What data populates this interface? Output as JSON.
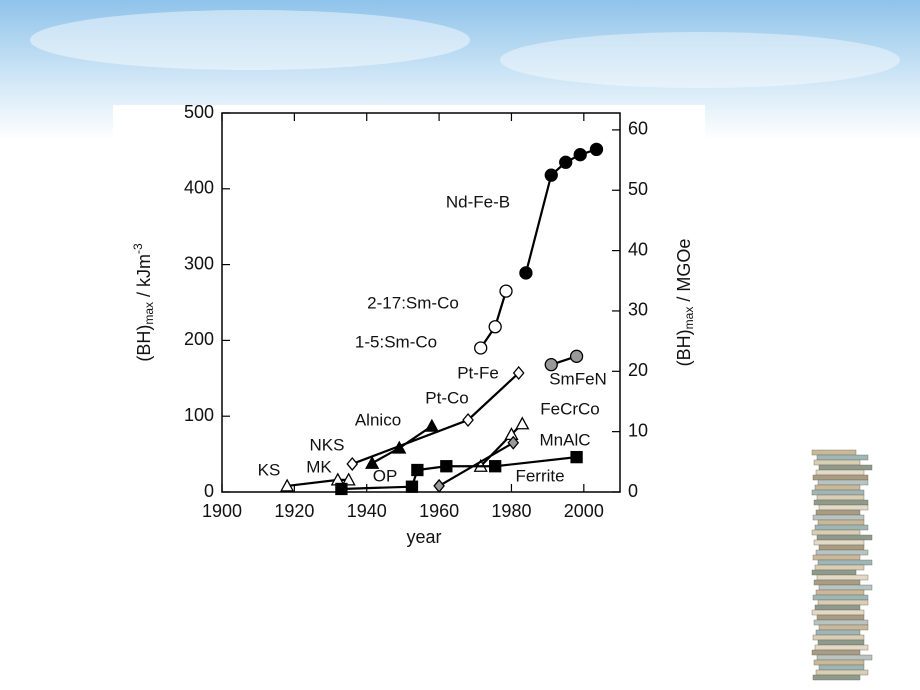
{
  "chart_data": {
    "type": "line",
    "xlabel": "year",
    "ylabel": [
      "(BH)",
      "max",
      " / kJm",
      "-3"
    ],
    "y2label": [
      "(BH)",
      "max",
      " / MGOe"
    ],
    "xlim": [
      1900,
      2010
    ],
    "xticks": [
      1900,
      1920,
      1940,
      1960,
      1980,
      2000
    ],
    "ylim": [
      0,
      500
    ],
    "yticks": [
      0,
      100,
      200,
      300,
      400,
      500
    ],
    "y2lim": [
      0,
      62.8
    ],
    "y2ticks": [
      0,
      10,
      20,
      30,
      40,
      50,
      60
    ],
    "series": [
      {
        "marker": "circle",
        "fill": "#000000",
        "color": "#000000",
        "x": [
          1984,
          1991,
          1995,
          1999,
          2003.5
        ],
        "values": [
          289,
          418,
          435,
          445,
          452
        ]
      },
      {
        "marker": "circle",
        "fill": "#ffffff",
        "color": "#000000",
        "x": [
          1971.5,
          1975.5,
          1978.5
        ],
        "values": [
          190,
          218,
          265
        ]
      },
      {
        "marker": "circle",
        "fill": "#999999",
        "color": "#000000",
        "x": [
          1991,
          1998
        ],
        "values": [
          168,
          179
        ]
      },
      {
        "marker": "diamond",
        "fill": "#ffffff",
        "color": "#000000",
        "x": [
          1936,
          1968,
          1982
        ],
        "values": [
          37,
          95,
          157
        ]
      },
      {
        "marker": "triangle",
        "fill": "#000000",
        "color": "#000000",
        "x": [
          1941.5,
          1949,
          1958
        ],
        "values": [
          38,
          58,
          87
        ]
      },
      {
        "marker": "triangle",
        "fill": "#ffffff",
        "color": "#000000",
        "x": [
          1918,
          1932,
          1935
        ],
        "values": [
          8,
          16,
          16
        ]
      },
      {
        "marker": "triangle",
        "fill": "#ffffff",
        "color": "#000000",
        "x": [
          1971.5,
          1980,
          1983
        ],
        "values": [
          34,
          76,
          90
        ]
      },
      {
        "marker": "square",
        "fill": "#000000",
        "color": "#000000",
        "x": [
          1933,
          1952.5,
          1954,
          1962,
          1975.5,
          1998
        ],
        "values": [
          4,
          7,
          29,
          34,
          34,
          46
        ]
      },
      {
        "marker": "diamond",
        "fill": "#999999",
        "color": "#000000",
        "x": [
          1960,
          1980.5
        ],
        "values": [
          8,
          65
        ]
      }
    ],
    "annotations": [
      "Nd-Fe-B",
      "2-17:Sm-Co",
      "1-5:Sm-Co",
      "Pt-Fe",
      "Pt-Co",
      "SmFeN",
      "Alnico",
      "FeCrCo",
      "NKS",
      "MnAlC",
      "MK",
      "KS",
      "OP",
      "Ferrite"
    ]
  }
}
